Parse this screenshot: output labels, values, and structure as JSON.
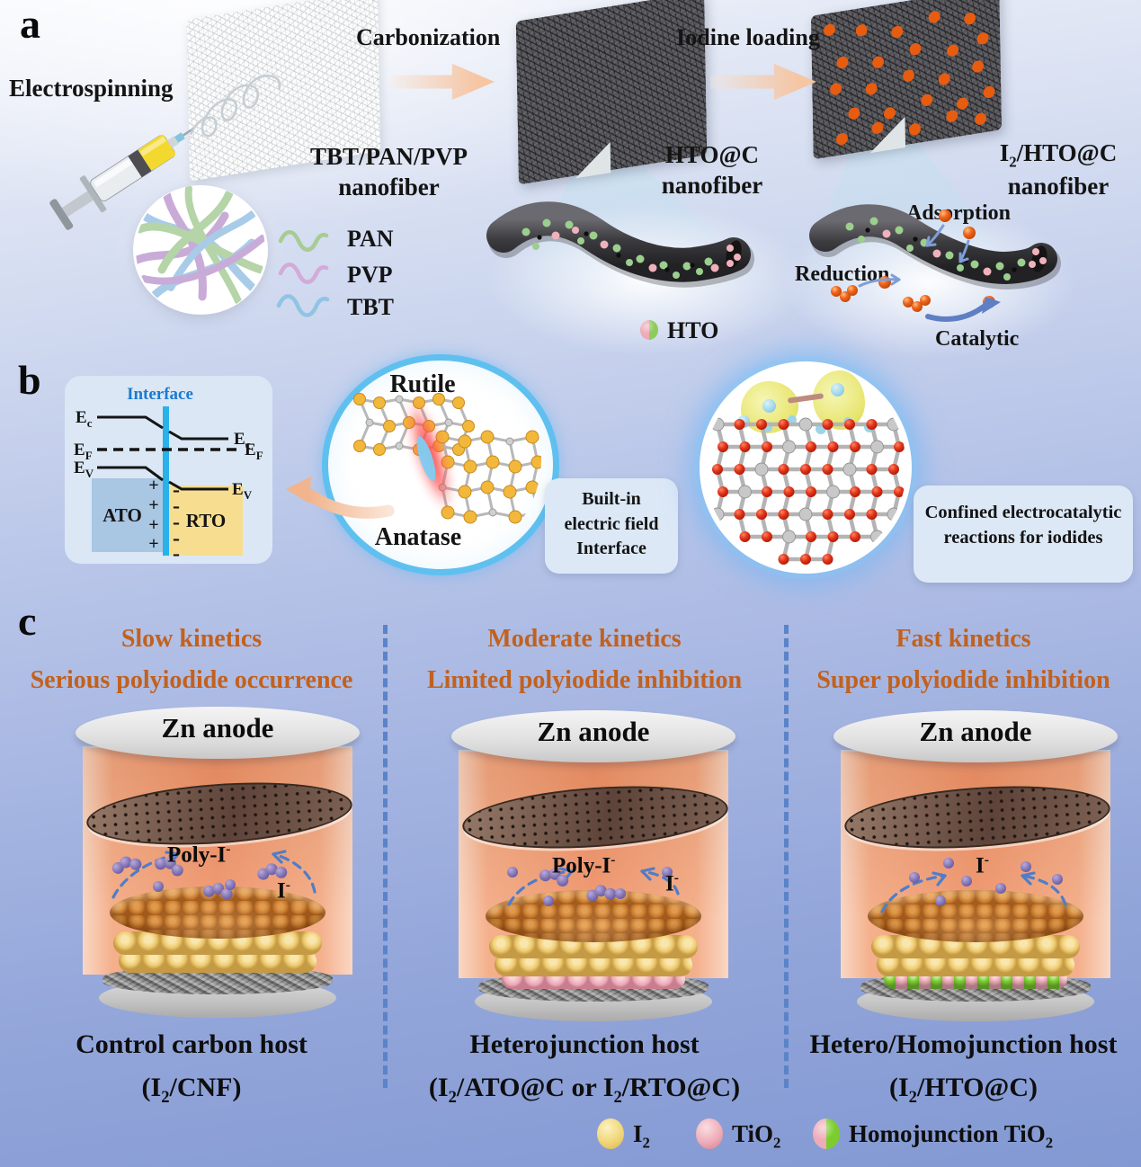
{
  "colors": {
    "header_orange": "#c2611e",
    "divider_blue": "#5b83c8",
    "interface_cyan": "#29b1ea",
    "ato_blue": "#a9c6e3",
    "rto_yellow": "#f7dd90",
    "iodine_yellow": "#eecd74",
    "tio2_pink": "#eba9b6",
    "homojunction_green": "#7ccc30",
    "polyiodide_purple": "#8274b2",
    "iodine_orange": "#e85c10"
  },
  "panel_a": {
    "label": "a",
    "electrospinning_label": "Electrospinning",
    "carbonization_label": "Carbonization",
    "iodine_loading_label": "Iodine loading",
    "mat1_caption_line1": "TBT/PAN/PVP",
    "mat1_caption_line2": "nanofiber",
    "mat2_caption_line1": "HTO@C",
    "mat2_caption_line2": "nanofiber",
    "mat3_caption": {
      "pre": "I",
      "sub": "2",
      "post": "/HTO@C"
    },
    "mat3_caption_line2": "nanofiber",
    "polymers": [
      {
        "label": "PAN"
      },
      {
        "label": "PVP"
      },
      {
        "label": "TBT"
      }
    ],
    "hto_label": "HTO",
    "adsorption_label": "Adsorption",
    "reduction_label": "Reduction",
    "catalytic_label": "Catalytic"
  },
  "panel_b": {
    "label": "b",
    "interface_label": "Interface",
    "e_levels": {
      "e": "E",
      "c": "c",
      "f": "F",
      "v": "V"
    },
    "ato_label": "ATO",
    "rto_label": "RTO",
    "plus_sign": "+",
    "minus_sign": "-",
    "rutile_label": "Rutile",
    "anatase_label": "Anatase",
    "builtin_line1": "Built-in",
    "builtin_line2": "electric field",
    "builtin_line3": "Interface",
    "confined_line1": "Confined electrocatalytic",
    "confined_line2": "reactions for iodides"
  },
  "panel_c": {
    "label": "c",
    "columns": [
      {
        "header_line1": "Slow kinetics",
        "header_line2": "Serious polyiodide occurrence",
        "caption_line1": "Control carbon host",
        "formula": {
          "pre": "(I",
          "sub": "2",
          "post": "/CNF)"
        }
      },
      {
        "header_line1": "Moderate kinetics",
        "header_line2": "Limited polyiodide inhibition",
        "caption_line1": "Heterojunction host",
        "formula": {
          "pre": "(I",
          "sub": "2",
          "mid": "/ATO@C or I",
          "sub2": "2",
          "post": "/RTO@C)"
        }
      },
      {
        "header_line1": "Fast kinetics",
        "header_line2": "Super polyiodide inhibition",
        "caption_line1": "Hetero/Homojunction host",
        "formula": {
          "pre": "(I",
          "sub": "2",
          "post": "/HTO@C)"
        }
      }
    ],
    "zn_anode_label": "Zn anode",
    "poly_iodide_label": {
      "pre": "Poly-I",
      "sup": "-"
    },
    "iodide_label": {
      "pre": "I",
      "sup": "-"
    },
    "legend": [
      {
        "pre": "I",
        "sub": "2"
      },
      {
        "pre": "TiO",
        "sub": "2"
      },
      {
        "pre": "Homojunction TiO",
        "sub": "2"
      }
    ]
  }
}
